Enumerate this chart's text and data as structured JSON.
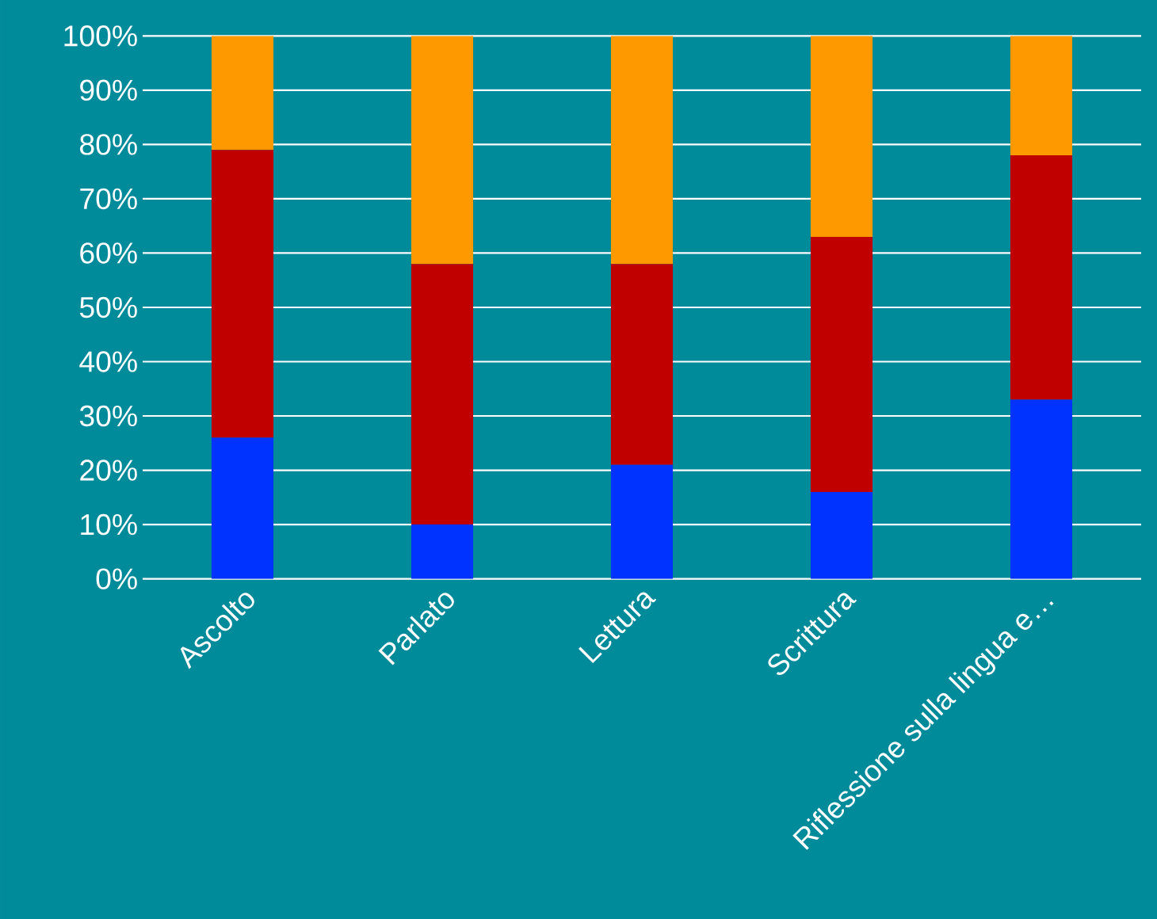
{
  "chart_data": {
    "type": "bar",
    "stacked": true,
    "grid": "y",
    "categories": [
      "Ascolto",
      "Parlato",
      "Lettura",
      "Scrittura",
      "Riflessione sulla lingua e…"
    ],
    "series": [
      {
        "color": "#0033ff",
        "values": [
          26,
          10,
          21,
          16,
          33
        ]
      },
      {
        "color": "#c00000",
        "values": [
          53,
          48,
          37,
          47,
          45
        ]
      },
      {
        "color": "#ff9900",
        "values": [
          21,
          42,
          42,
          37,
          22
        ]
      }
    ],
    "ylim": [
      0,
      100
    ],
    "yticks": [
      {
        "value": 0,
        "label": "0%"
      },
      {
        "value": 10,
        "label": "10%"
      },
      {
        "value": 20,
        "label": "20%"
      },
      {
        "value": 30,
        "label": "30%"
      },
      {
        "value": 40,
        "label": "40%"
      },
      {
        "value": 50,
        "label": "50%"
      },
      {
        "value": 60,
        "label": "60%"
      },
      {
        "value": 70,
        "label": "70%"
      },
      {
        "value": 80,
        "label": "80%"
      },
      {
        "value": 90,
        "label": "90%"
      },
      {
        "value": 100,
        "label": "100%"
      }
    ]
  }
}
